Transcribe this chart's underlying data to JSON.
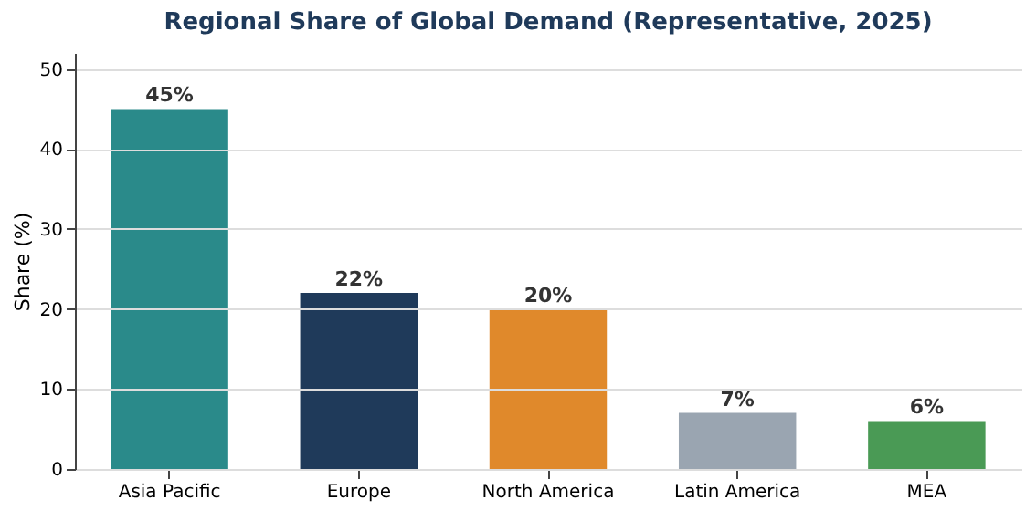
{
  "chart_data": {
    "type": "bar",
    "title": "Regional Share of Global Demand (Representative, 2025)",
    "ylabel": "Share (%)",
    "categories": [
      "Asia Pacific",
      "Europe",
      "North America",
      "Latin America",
      "MEA"
    ],
    "values": [
      45,
      22,
      20,
      7,
      6
    ],
    "colors": [
      "#2a8a8a",
      "#1f3a5a",
      "#e0892b",
      "#9aa5b1",
      "#4a9a55"
    ],
    "value_labels": [
      "45%",
      "22%",
      "20%",
      "7%",
      "6%"
    ],
    "ylim": [
      0,
      52
    ],
    "yticks": [
      0,
      10,
      20,
      30,
      40,
      50
    ],
    "grid": "y",
    "legend": false
  }
}
